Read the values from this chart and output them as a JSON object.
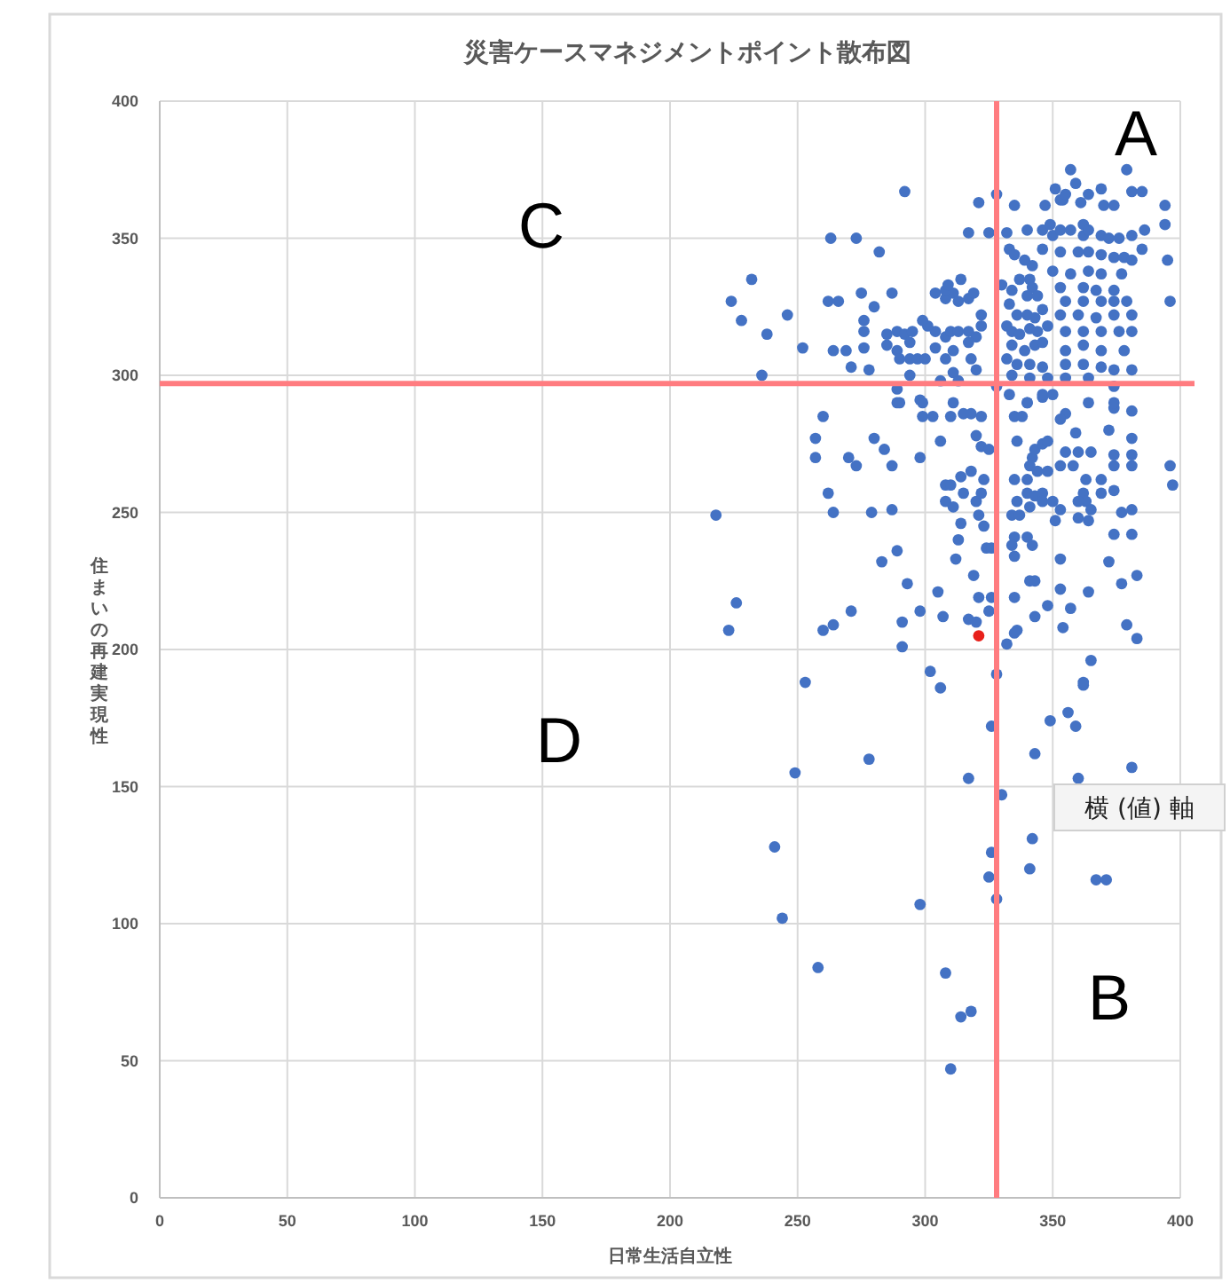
{
  "chart_data": {
    "type": "scatter",
    "title": "災害ケースマネジメントポイント散布図",
    "xlabel": "日常生活自立性",
    "ylabel": "住まいの再建実現性",
    "xlim": [
      0,
      400
    ],
    "xticks": [
      0,
      50,
      100,
      150,
      200,
      250,
      300,
      350,
      400
    ],
    "ylim": [
      0,
      400
    ],
    "yticks": [
      0,
      50,
      100,
      150,
      200,
      250,
      300,
      350,
      400
    ],
    "grid": true,
    "marker": "circle",
    "ref_lines": [
      {
        "axis": "x",
        "value": 328,
        "color": "#ff7c80"
      },
      {
        "axis": "y",
        "value": 297,
        "color": "#ff7c80"
      }
    ],
    "annotations": [
      "A",
      "C",
      "D",
      "B",
      "横 (値) 軸"
    ],
    "series": [
      {
        "color": "#4472c4",
        "x": [
          253,
          306,
          326,
          349,
          356,
          359,
          362,
          278,
          249,
          343,
          381,
          317,
          330,
          360,
          241,
          342,
          326,
          341,
          325,
          367,
          371,
          328,
          298,
          244,
          258,
          308,
          314,
          318,
          310,
          218,
          226,
          223,
          260,
          257,
          257,
          262,
          264,
          260,
          264,
          271,
          270,
          273,
          280,
          284,
          287,
          279,
          287,
          289,
          283,
          293,
          291,
          291,
          298,
          305,
          307,
          298,
          306,
          299,
          303,
          310,
          315,
          318,
          322,
          308,
          310,
          308,
          311,
          314,
          318,
          323,
          315,
          320,
          322,
          321,
          323,
          314,
          313,
          324,
          326,
          312,
          319,
          321,
          326,
          317,
          320,
          325,
          320,
          322,
          325,
          336,
          335,
          338,
          340,
          346,
          342,
          343,
          346,
          348,
          341,
          344,
          348,
          353,
          335,
          340,
          340,
          343,
          346,
          336,
          334,
          337,
          341,
          346,
          350,
          353,
          351,
          335,
          340,
          334,
          342,
          335,
          353,
          341,
          343,
          335,
          348,
          343,
          353,
          354,
          336,
          332,
          357,
          364,
          355,
          353,
          359,
          355,
          360,
          365,
          358,
          363,
          369,
          362,
          363,
          360,
          369,
          374,
          365,
          364,
          360,
          372,
          381,
          374,
          381,
          374,
          381,
          374,
          381,
          377,
          381,
          374,
          381,
          372,
          383,
          377,
          379,
          383,
          365,
          362,
          396,
          397,
          302,
          328,
          335,
          292,
          263,
          273,
          282,
          232,
          224,
          228,
          246,
          238,
          236,
          252,
          262,
          266,
          264,
          269,
          275,
          276,
          276,
          280,
          287,
          271,
          278,
          276,
          285,
          289,
          292,
          295,
          285,
          289,
          294,
          290,
          294,
          297,
          300,
          294,
          289,
          290,
          298,
          304,
          304,
          308,
          310,
          313,
          317,
          308,
          311,
          313,
          317,
          319,
          304,
          308,
          309,
          314,
          317,
          321,
          325,
          328,
          335,
          332,
          333,
          322,
          322,
          320,
          317,
          311,
          308,
          311,
          318,
          320,
          306,
          313,
          311,
          330,
          334,
          337,
          341,
          342,
          340,
          344,
          333,
          336,
          340,
          343,
          346,
          332,
          334,
          337,
          341,
          344,
          348,
          334,
          339,
          343,
          346,
          332,
          336,
          341,
          346,
          334,
          341,
          346,
          328,
          333,
          340,
          340,
          346,
          349,
          350,
          346,
          342,
          339,
          335,
          347,
          351,
          353,
          354,
          355,
          357,
          359,
          361,
          364,
          369,
          370,
          374,
          353,
          357,
          362,
          362,
          364,
          369,
          372,
          376,
          381,
          386,
          385,
          379,
          381,
          385,
          394,
          394,
          395,
          396,
          353,
          360,
          364,
          369,
          374,
          378,
          381,
          350,
          357,
          364,
          369,
          377,
          353,
          362,
          367,
          374,
          355,
          362,
          369,
          374,
          379,
          353,
          360,
          367,
          374,
          381,
          355,
          362,
          369,
          376,
          381,
          355,
          362,
          369,
          378,
          355,
          362,
          369,
          374,
          381,
          348,
          355,
          364,
          374,
          350,
          364,
          374,
          301,
          299,
          289,
          299
        ],
        "values": [
          188,
          186,
          172,
          174,
          177,
          172,
          187,
          160,
          155,
          162,
          157,
          153,
          147,
          153,
          128,
          131,
          126,
          120,
          117,
          116,
          116,
          109,
          107,
          102,
          84,
          82,
          66,
          68,
          47,
          249,
          217,
          207,
          285,
          277,
          270,
          257,
          250,
          207,
          209,
          214,
          270,
          267,
          277,
          273,
          267,
          250,
          251,
          236,
          232,
          224,
          210,
          201,
          214,
          221,
          212,
          270,
          276,
          285,
          285,
          285,
          286,
          286,
          285,
          260,
          260,
          254,
          252,
          263,
          265,
          262,
          257,
          254,
          257,
          249,
          245,
          246,
          240,
          237,
          237,
          233,
          227,
          219,
          219,
          211,
          210,
          214,
          278,
          274,
          273,
          276,
          285,
          285,
          290,
          292,
          270,
          273,
          275,
          276,
          267,
          265,
          265,
          267,
          262,
          262,
          257,
          256,
          257,
          254,
          249,
          249,
          252,
          254,
          254,
          251,
          247,
          241,
          241,
          238,
          238,
          234,
          233,
          225,
          225,
          219,
          216,
          212,
          222,
          208,
          207,
          202,
          215,
          221,
          286,
          284,
          279,
          272,
          272,
          272,
          267,
          262,
          262,
          257,
          254,
          254,
          257,
          258,
          251,
          247,
          248,
          280,
          277,
          288,
          287,
          271,
          271,
          267,
          267,
          250,
          251,
          242,
          242,
          232,
          227,
          224,
          209,
          204,
          196,
          188,
          267,
          260,
          192,
          191,
          206,
          367,
          350,
          350,
          345,
          335,
          327,
          320,
          322,
          315,
          300,
          310,
          327,
          327,
          309,
          309,
          330,
          320,
          316,
          325,
          330,
          303,
          302,
          310,
          315,
          316,
          315,
          316,
          311,
          309,
          312,
          306,
          306,
          306,
          306,
          300,
          295,
          290,
          291,
          310,
          316,
          314,
          316,
          316,
          316,
          328,
          330,
          327,
          328,
          330,
          330,
          331,
          333,
          335,
          352,
          363,
          352,
          366,
          362,
          352,
          346,
          322,
          318,
          314,
          312,
          309,
          306,
          301,
          306,
          302,
          298,
          298,
          290,
          333,
          331,
          335,
          335,
          332,
          329,
          329,
          326,
          322,
          322,
          321,
          324,
          318,
          316,
          315,
          317,
          316,
          318,
          311,
          309,
          311,
          312,
          306,
          304,
          304,
          303,
          300,
          299,
          293,
          296,
          293,
          290,
          353,
          353,
          355,
          351,
          346,
          340,
          342,
          344,
          362,
          368,
          364,
          364,
          366,
          375,
          370,
          363,
          366,
          368,
          362,
          362,
          353,
          353,
          355,
          351,
          353,
          351,
          350,
          350,
          351,
          353,
          346,
          375,
          367,
          367,
          362,
          355,
          342,
          327,
          345,
          345,
          345,
          344,
          343,
          343,
          342,
          338,
          337,
          338,
          337,
          337,
          332,
          332,
          331,
          331,
          327,
          327,
          327,
          327,
          327,
          322,
          322,
          321,
          322,
          322,
          316,
          316,
          316,
          316,
          316,
          309,
          311,
          309,
          309,
          304,
          304,
          303,
          302,
          302,
          299,
          299,
          299,
          296,
          293,
          290,
          290,
          318,
          320,
          290,
          290
        ]
      },
      {
        "color": "#e8201a",
        "x": [
          321
        ],
        "values": [
          205
        ]
      }
    ]
  }
}
